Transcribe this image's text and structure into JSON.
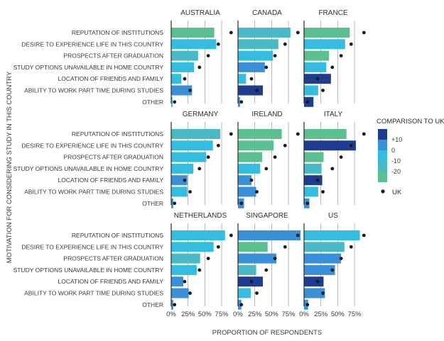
{
  "chart_data": {
    "type": "bar",
    "ylabel": "MOTIVATION FOR CONSIDERING STUDY IN THIS COUNTRY",
    "xlabel": "PROPORTION OF RESPONDENTS",
    "xticks": [
      "0%",
      "25%",
      "50%",
      "75%"
    ],
    "xlim": [
      0,
      95
    ],
    "categories": [
      "REPUTATION OF INSTITUTIONS",
      "DESIRE TO EXPERIENCE LIFE IN THIS COUNTRY",
      "PROSPECTS AFTER GRADUATION",
      "STUDY OPTIONS UNAVAILABLE IN HOME COUNTRY",
      "LOCATION OF FRIENDS AND FAMILY",
      "ABILITY TO WORK PART TIME DURING STUDIES",
      "OTHER"
    ],
    "uk_values": [
      89,
      70,
      55,
      42,
      20,
      28,
      5
    ],
    "legend": {
      "title": "COMPARISON TO UK",
      "ticks": [
        "+10",
        "0",
        "-10",
        "-20"
      ],
      "uk_label": "UK",
      "colors": [
        "#1f3d8f",
        "#3a8fd9",
        "#35bde0",
        "#49b9c8",
        "#5cbf8f"
      ]
    },
    "panels": [
      {
        "name": "AUSTRALIA",
        "values": [
          64,
          67,
          40,
          34,
          15,
          31,
          2
        ]
      },
      {
        "name": "CANADA",
        "values": [
          78,
          60,
          52,
          40,
          12,
          37,
          3
        ]
      },
      {
        "name": "FRANCE",
        "values": [
          68,
          61,
          37,
          33,
          40,
          21,
          14
        ]
      },
      {
        "name": "GERMANY",
        "values": [
          73,
          62,
          52,
          33,
          24,
          24,
          3
        ]
      },
      {
        "name": "IRELAND",
        "values": [
          65,
          53,
          36,
          33,
          20,
          27,
          9
        ]
      },
      {
        "name": "ITALY",
        "values": [
          63,
          77,
          29,
          26,
          27,
          21,
          8
        ]
      },
      {
        "name": "NETHERLANDS",
        "values": [
          80,
          63,
          43,
          38,
          18,
          26,
          3
        ]
      },
      {
        "name": "SINGAPORE",
        "values": [
          93,
          44,
          57,
          27,
          37,
          19,
          5
        ]
      },
      {
        "name": "US",
        "values": [
          83,
          60,
          55,
          46,
          29,
          31,
          6
        ]
      }
    ]
  }
}
